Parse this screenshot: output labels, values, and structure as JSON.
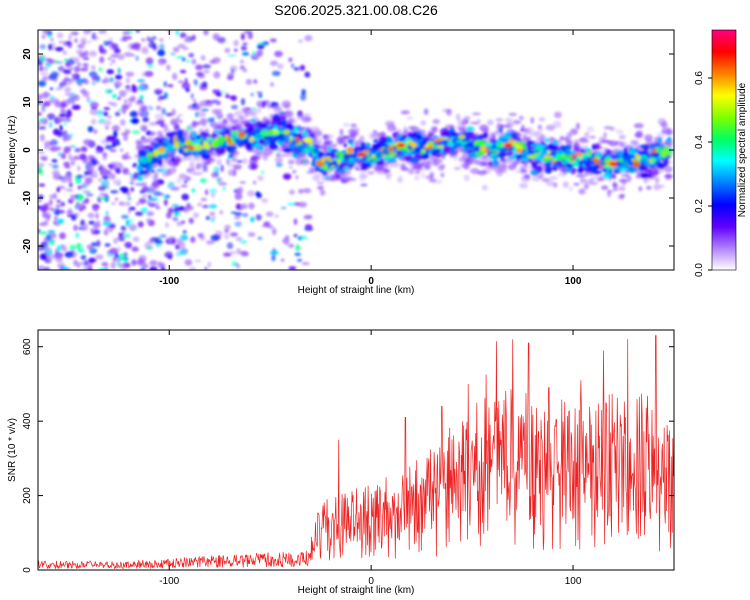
{
  "title": "S206.2025.321.00.08.C26",
  "chart_data": [
    {
      "type": "heatmap",
      "name": "spectrogram",
      "xlabel": "Height of straight line (km)",
      "ylabel": "Frequency (Hz)",
      "xlim": [
        -165,
        150
      ],
      "ylim": [
        -25,
        25
      ],
      "xticks": [
        -100,
        0,
        100
      ],
      "xtick_labels": [
        "-100",
        "0",
        "100"
      ],
      "yticks": [
        -20,
        -10,
        0,
        10,
        20
      ],
      "ytick_labels": [
        "-20",
        "-10",
        "0",
        "10",
        "20"
      ],
      "ridge": {
        "description": "frequency of dominant signal vs height",
        "x": [
          -115,
          -100,
          -85,
          -70,
          -55,
          -45,
          -38,
          -30,
          -25,
          -10,
          0,
          10,
          20,
          30,
          40,
          50,
          60,
          70,
          80,
          90,
          100,
          110,
          120,
          130,
          140,
          148
        ],
        "y": [
          -3,
          1,
          1,
          2,
          3,
          4,
          2,
          1,
          -3,
          -1,
          -1,
          0,
          1,
          0,
          2,
          1,
          0,
          1,
          -1,
          -1,
          -2,
          -2,
          -3,
          -2,
          -2,
          0
        ]
      },
      "noise_region_xlim": [
        -165,
        -30
      ]
    },
    {
      "type": "colorbar",
      "name": "colorbar",
      "label": "Normalized spectral amplitude",
      "lim": [
        0,
        0.75
      ],
      "ticks": [
        0,
        0.2,
        0.4,
        0.6
      ],
      "tick_labels": [
        "0.0",
        "0.2",
        "0.4",
        "0.6"
      ],
      "colors": [
        "#ffffff",
        "#b080ff",
        "#6000ff",
        "#0000ff",
        "#0080ff",
        "#00ffff",
        "#00ff60",
        "#80ff00",
        "#ffff00",
        "#ff8000",
        "#ff0000",
        "#ff0080"
      ]
    },
    {
      "type": "line",
      "name": "snr",
      "xlabel": "Height of straight line (km)",
      "ylabel": "SNR (10 * v/v)",
      "xlim": [
        -165,
        150
      ],
      "ylim": [
        0,
        645
      ],
      "xticks": [
        -100,
        0,
        100
      ],
      "xtick_labels": [
        "-100",
        "0",
        "100"
      ],
      "yticks": [
        0,
        200,
        400,
        600
      ],
      "ytick_labels": [
        "0",
        "200",
        "400",
        "600"
      ],
      "color": "#ee2222",
      "envelope": {
        "x": [
          -165,
          -120,
          -90,
          -60,
          -40,
          -31,
          -25,
          -15,
          0,
          15,
          30,
          40,
          55,
          70,
          80,
          100,
          120,
          135,
          150
        ],
        "y": [
          25,
          25,
          35,
          45,
          50,
          55,
          150,
          170,
          190,
          220,
          270,
          320,
          380,
          400,
          390,
          370,
          390,
          400,
          300
        ]
      },
      "peaks": [
        {
          "x": -16,
          "y": 350
        },
        {
          "x": 17,
          "y": 410
        },
        {
          "x": 35,
          "y": 440
        },
        {
          "x": 48,
          "y": 500
        },
        {
          "x": 57,
          "y": 525
        },
        {
          "x": 62,
          "y": 615
        },
        {
          "x": 70,
          "y": 620
        },
        {
          "x": 78,
          "y": 610
        },
        {
          "x": 88,
          "y": 490
        },
        {
          "x": 104,
          "y": 510
        },
        {
          "x": 115,
          "y": 590
        },
        {
          "x": 127,
          "y": 620
        },
        {
          "x": 141,
          "y": 630
        }
      ]
    }
  ]
}
